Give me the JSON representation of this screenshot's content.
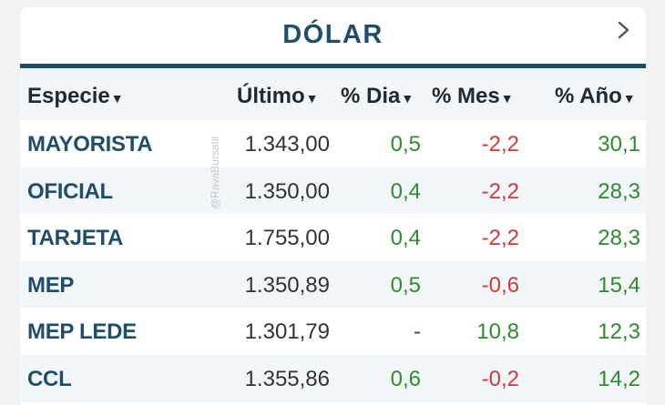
{
  "title": "DÓLAR",
  "columns": {
    "especie": "Especie",
    "ultimo": "Último",
    "dia": "% Dia",
    "mes": "% Mes",
    "ano": "% Año"
  },
  "watermark": "@RavaBursatil",
  "rows": [
    {
      "especie": "MAYORISTA",
      "ultimo": "1.343,00",
      "dia": "0,5",
      "mes": "-2,2",
      "ano": "30,1"
    },
    {
      "especie": "OFICIAL",
      "ultimo": "1.350,00",
      "dia": "0,4",
      "mes": "-2,2",
      "ano": "28,3"
    },
    {
      "especie": "TARJETA",
      "ultimo": "1.755,00",
      "dia": "0,4",
      "mes": "-2,2",
      "ano": "28,3"
    },
    {
      "especie": "MEP",
      "ultimo": "1.350,89",
      "dia": "0,5",
      "mes": "-0,6",
      "ano": "15,4"
    },
    {
      "especie": "MEP LEDE",
      "ultimo": "1.301,79",
      "dia": "-",
      "mes": "10,8",
      "ano": "12,3"
    },
    {
      "especie": "CCL",
      "ultimo": "1.355,86",
      "dia": "0,6",
      "mes": "-0,2",
      "ano": "14,2"
    }
  ],
  "colors": {
    "accent": "#1f4e6b",
    "positive": "#2e8b2e",
    "negative": "#d23a3a"
  }
}
